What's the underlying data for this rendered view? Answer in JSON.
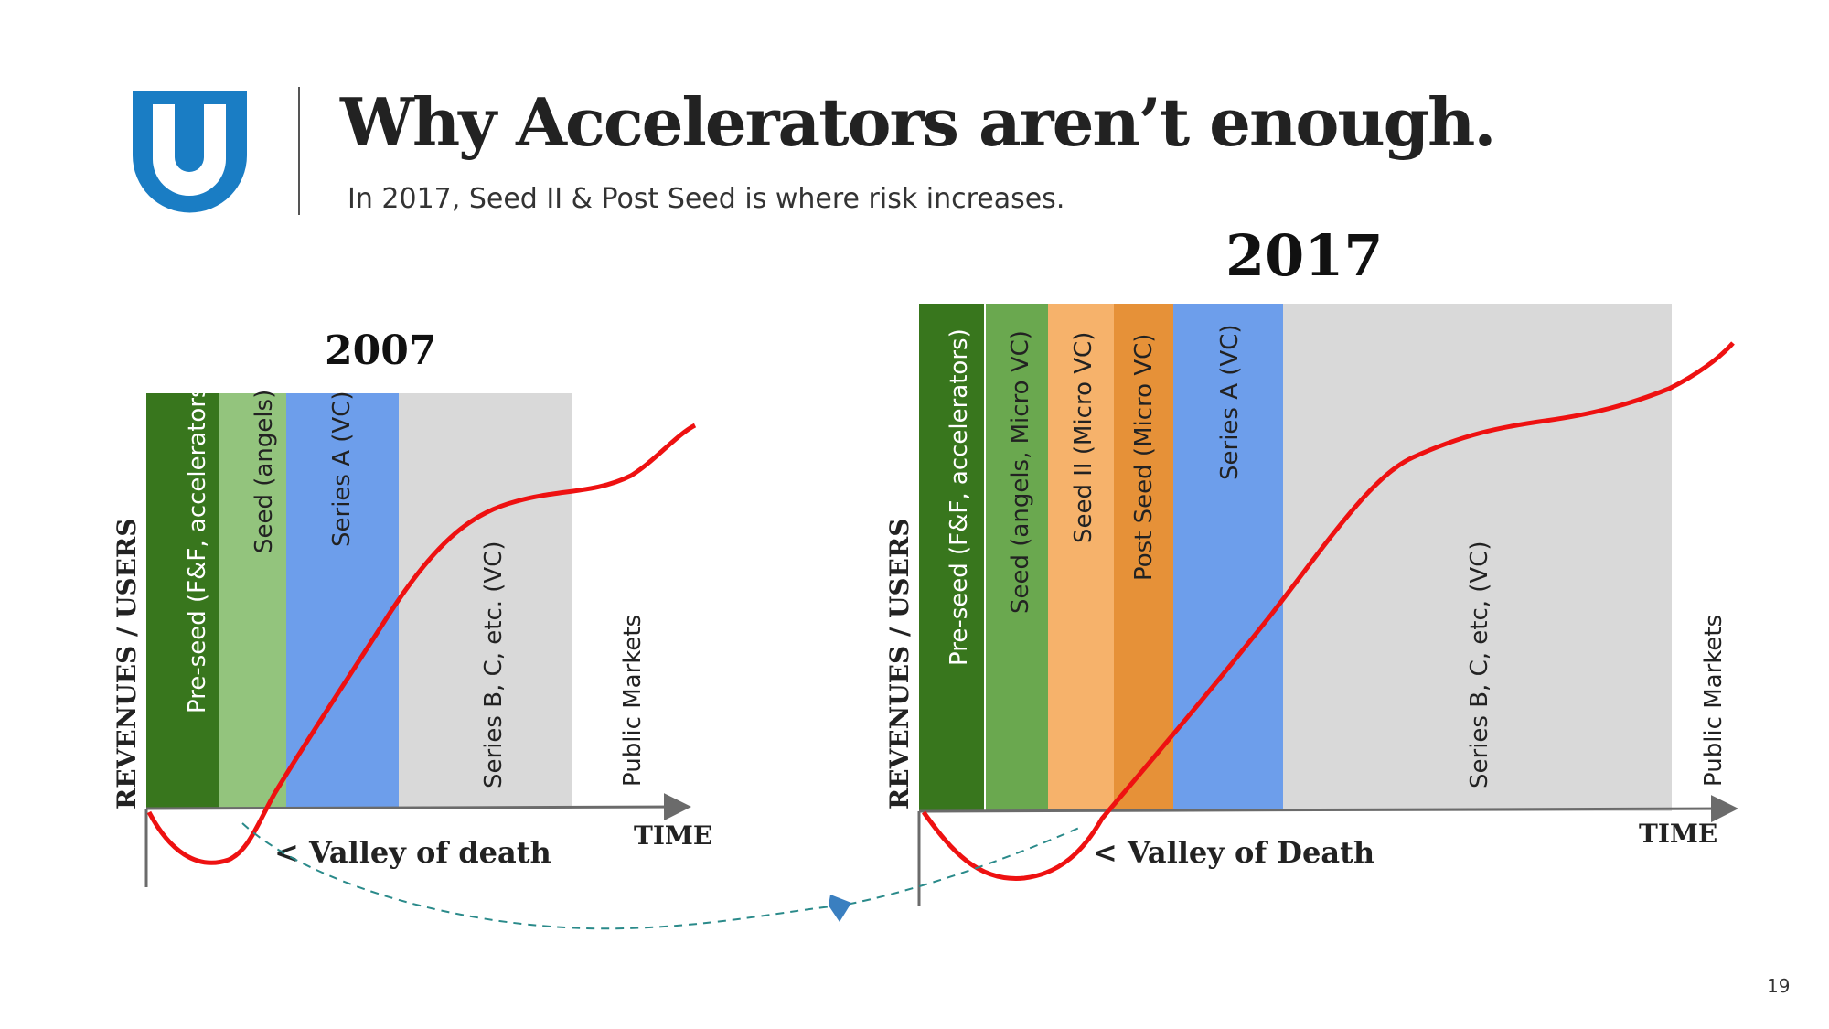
{
  "header": {
    "title": "Why Accelerators aren’t enough.",
    "subtitle": "In 2017, Seed II & Post Seed is where risk increases."
  },
  "logo": {
    "icon": "u-shield-logo",
    "color": "#1a7dc4"
  },
  "colors": {
    "curve": "#ee1111",
    "axis": "#6b6b6b",
    "connector": "#2a8a8a",
    "arrowhead": "#3a7fc0"
  },
  "diagram_2007": {
    "year": "2007",
    "y_axis_label": "REVENUES / USERS",
    "x_axis_label": "TIME",
    "valley_label": "< Valley of death",
    "stages": [
      {
        "label": "Pre-seed (F&F, accelerators)",
        "color": "#38761d",
        "text": "light"
      },
      {
        "label": "Seed (angels)",
        "color": "#93c47d",
        "text": "dark"
      },
      {
        "label": "Series A (VC)",
        "color": "#6d9eeb",
        "text": "dark"
      },
      {
        "label": "Series B, C, etc. (VC)",
        "color": "#d9d9d9",
        "text": "dark"
      },
      {
        "label": "Public Markets",
        "color": "#ffffff",
        "text": "dark"
      }
    ]
  },
  "diagram_2017": {
    "year": "2017",
    "y_axis_label": "REVENUES / USERS",
    "x_axis_label": "TIME",
    "valley_label": "< Valley of Death",
    "stages": [
      {
        "label": "Pre-seed (F&F, accelerators)",
        "color": "#38761d",
        "text": "light"
      },
      {
        "label": "Seed (angels, Micro VC)",
        "color": "#6aa84f",
        "text": "dark"
      },
      {
        "label": "Seed II (Micro VC)",
        "color": "#f6b26b",
        "text": "dark"
      },
      {
        "label": "Post Seed (Micro VC)",
        "color": "#e69138",
        "text": "dark"
      },
      {
        "label": "Series A (VC)",
        "color": "#6d9eeb",
        "text": "dark"
      },
      {
        "label": "Series B, C, etc, (VC)",
        "color": "#d9d9d9",
        "text": "dark"
      },
      {
        "label": "Public Markets",
        "color": "#ffffff",
        "text": "dark"
      }
    ]
  },
  "footer": {
    "page_number": "19"
  }
}
